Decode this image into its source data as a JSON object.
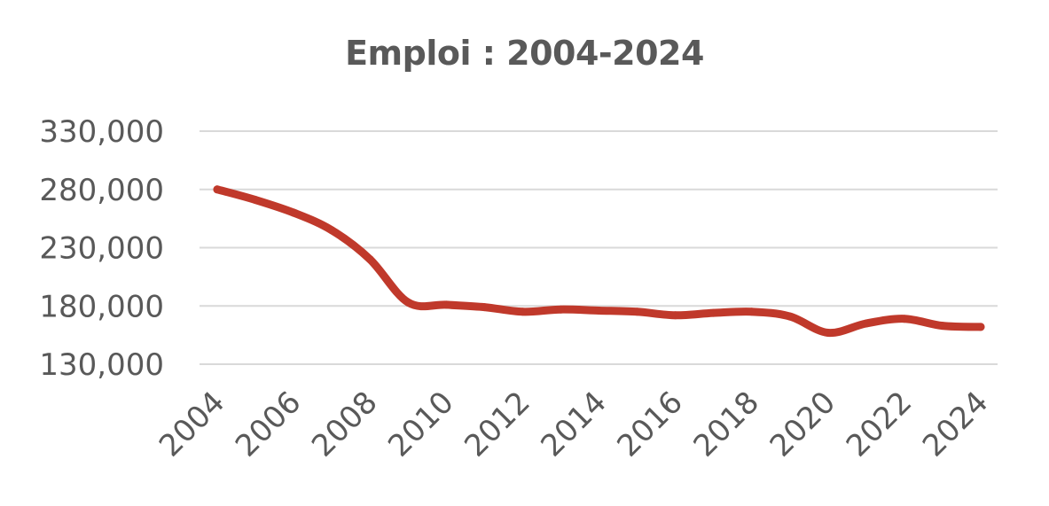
{
  "chart_data": {
    "type": "line",
    "title": "Emploi : 2004-2024",
    "xlabel": "",
    "ylabel": "",
    "x_ticks": [
      "2004",
      "2006",
      "2008",
      "2010",
      "2012",
      "2014",
      "2016",
      "2018",
      "2020",
      "2022",
      "2024"
    ],
    "y_ticks": [
      "130,000",
      "180,000",
      "230,000",
      "280,000",
      "330,000"
    ],
    "ylim": [
      130000,
      330000
    ],
    "xlim": [
      2004,
      2024
    ],
    "grid": true,
    "legend": "none",
    "line_color": "#c0392b",
    "series": [
      {
        "x": [
          2004,
          2005,
          2006,
          2007,
          2008,
          2009,
          2010,
          2011,
          2012,
          2013,
          2014,
          2015,
          2016,
          2017,
          2018,
          2019,
          2020,
          2021,
          2022,
          2023,
          2024
        ],
        "values": [
          280000,
          271000,
          260000,
          245000,
          220000,
          183000,
          181000,
          179000,
          175000,
          177000,
          176000,
          175000,
          172000,
          174000,
          175000,
          171000,
          157000,
          165000,
          169000,
          163000,
          162000
        ]
      }
    ]
  }
}
